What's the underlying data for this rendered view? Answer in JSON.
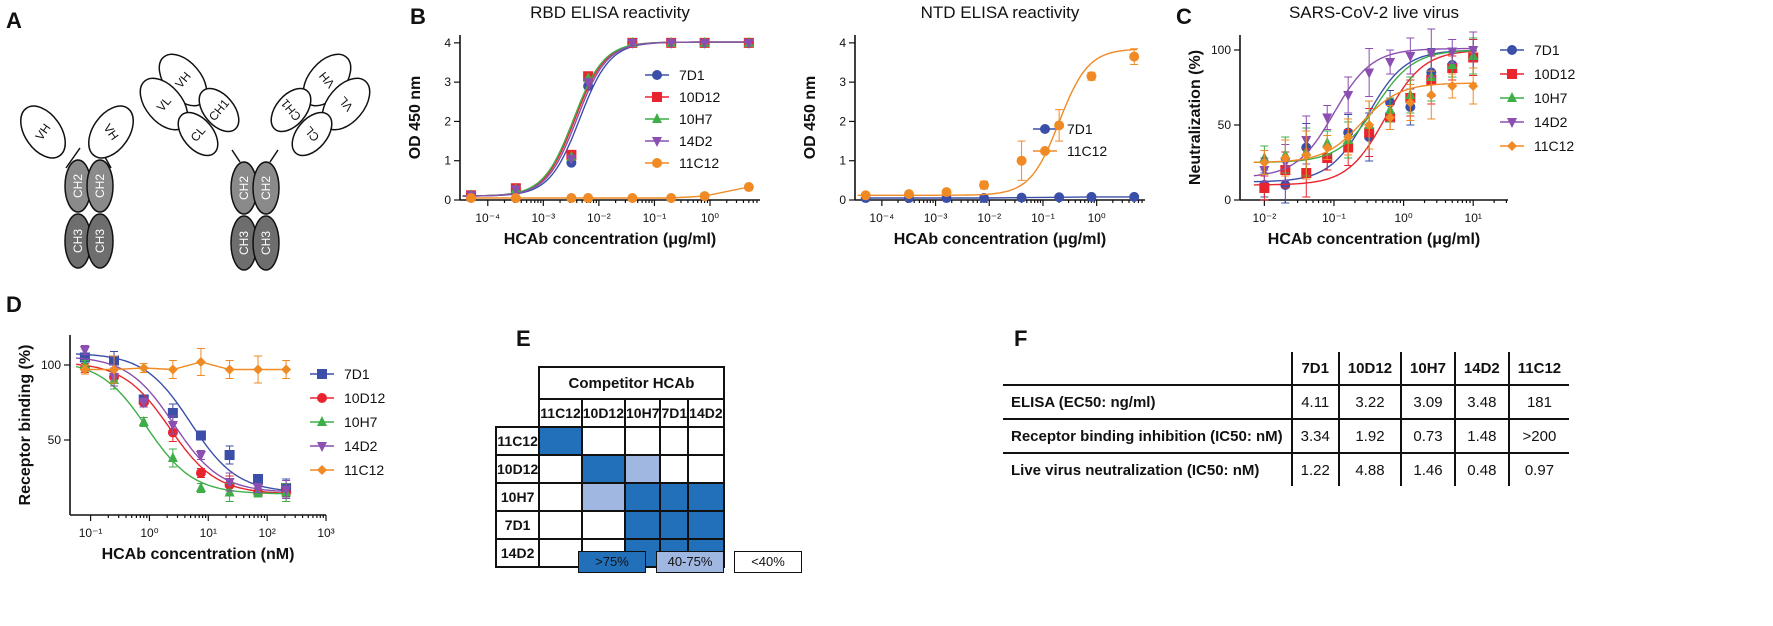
{
  "panel_labels": {
    "A": "A",
    "B": "B",
    "C": "C",
    "D": "D",
    "E": "E",
    "F": "F"
  },
  "diagram_a": {
    "heavy_only": {
      "domains": [
        "VH",
        "VH",
        "CH2",
        "CH2",
        "CH3",
        "CH3"
      ]
    },
    "conventional": {
      "domains": [
        "VH",
        "VL",
        "CH1",
        "CL",
        "CH2",
        "CH2",
        "CH3",
        "CH3",
        "CH1",
        "CL",
        "VH",
        "VL"
      ]
    }
  },
  "chart_data": [
    {
      "type": "line",
      "id": "B-left",
      "title": "RBD ELISA reactivity",
      "xlabel": "HCAb concentration (μg/ml)",
      "ylabel": "OD 450 nm",
      "xscale": "log10",
      "xlim_exp": [
        -4.5,
        0.9
      ],
      "ylim": [
        0,
        4.2
      ],
      "xticks": [
        "10⁻⁴",
        "10⁻³",
        "10⁻²",
        "10⁻¹",
        "10⁰"
      ],
      "xtick_exps": [
        -4,
        -3,
        -2,
        -1,
        0
      ],
      "yticks": [
        "0",
        "1",
        "2",
        "3",
        "4"
      ],
      "ytick_vals": [
        0,
        1,
        2,
        3,
        4
      ],
      "legend_loc": "center-right",
      "series": [
        {
          "name": "7D1",
          "color": "#3b4fa8",
          "marker": "circle",
          "x": [
            5e-05,
            0.00032,
            0.0032,
            0.0064,
            0.04,
            0.2,
            0.8,
            5
          ],
          "y": [
            0.12,
            0.25,
            0.95,
            2.9,
            4.0,
            4.0,
            4.0,
            4.0
          ],
          "ec50": 0.0045,
          "top": 4.02,
          "bottom": 0.1
        },
        {
          "name": "10D12",
          "color": "#e8252e",
          "marker": "square",
          "x": [
            5e-05,
            0.00032,
            0.0032,
            0.0064,
            0.04,
            0.2,
            0.8,
            5
          ],
          "y": [
            0.12,
            0.3,
            1.15,
            3.15,
            4.0,
            4.0,
            4.0,
            4.0
          ],
          "ec50": 0.0037,
          "top": 4.02,
          "bottom": 0.1
        },
        {
          "name": "10H7",
          "color": "#3fae49",
          "marker": "triangle-up",
          "x": [
            5e-05,
            0.00032,
            0.0032,
            0.0064,
            0.04,
            0.2,
            0.8,
            5
          ],
          "y": [
            0.12,
            0.28,
            1.1,
            3.1,
            4.0,
            4.0,
            4.0,
            4.0
          ],
          "ec50": 0.0035,
          "top": 4.02,
          "bottom": 0.1
        },
        {
          "name": "14D2",
          "color": "#8a4fb0",
          "marker": "triangle-down",
          "x": [
            5e-05,
            0.00032,
            0.0032,
            0.0064,
            0.04,
            0.2,
            0.8,
            5
          ],
          "y": [
            0.12,
            0.27,
            1.05,
            3.0,
            4.0,
            4.0,
            4.0,
            4.0
          ],
          "ec50": 0.004,
          "top": 4.02,
          "bottom": 0.1
        },
        {
          "name": "11C12",
          "color": "#f08a24",
          "marker": "circle",
          "x": [
            5e-05,
            0.00032,
            0.0032,
            0.0064,
            0.04,
            0.2,
            0.8,
            5
          ],
          "y": [
            0.05,
            0.05,
            0.05,
            0.05,
            0.05,
            0.05,
            0.1,
            0.33
          ],
          "ec50": null,
          "top": null,
          "bottom": null
        }
      ]
    },
    {
      "type": "line",
      "id": "B-right",
      "title": "NTD ELISA reactivity",
      "xlabel": "HCAb concentration (μg/ml)",
      "ylabel": "OD 450 nm",
      "xscale": "log10",
      "xlim_exp": [
        -4.5,
        0.9
      ],
      "ylim": [
        0,
        4.2
      ],
      "xticks": [
        "10⁻⁴",
        "10⁻³",
        "10⁻²",
        "10⁻¹",
        "10⁰"
      ],
      "xtick_exps": [
        -4,
        -3,
        -2,
        -1,
        0
      ],
      "yticks": [
        "0",
        "1",
        "2",
        "3",
        "4"
      ],
      "ytick_vals": [
        0,
        1,
        2,
        3,
        4
      ],
      "legend_loc": "center-right",
      "series": [
        {
          "name": "7D1",
          "color": "#3b4fa8",
          "marker": "circle",
          "x": [
            5e-05,
            0.00032,
            0.0016,
            0.008,
            0.04,
            0.2,
            0.8,
            5
          ],
          "y": [
            0.05,
            0.05,
            0.05,
            0.05,
            0.06,
            0.07,
            0.08,
            0.08
          ],
          "ec50": null
        },
        {
          "name": "11C12",
          "color": "#f08a24",
          "marker": "circle",
          "x": [
            5e-05,
            0.00032,
            0.0016,
            0.008,
            0.04,
            0.2,
            0.8,
            5
          ],
          "y": [
            0.12,
            0.15,
            0.2,
            0.38,
            1.0,
            1.9,
            3.15,
            3.65
          ],
          "err": [
            0.02,
            0.02,
            0.03,
            0.1,
            0.5,
            0.4,
            0.1,
            0.2
          ],
          "ec50": 0.2,
          "top": 3.85,
          "bottom": 0.12
        }
      ]
    },
    {
      "type": "line",
      "id": "C",
      "title": "SARS-CoV-2 live virus",
      "xlabel": "HCAb concentration (μg/ml)",
      "ylabel": "Neutralization (%)",
      "xscale": "log10",
      "xlim_exp": [
        -2.35,
        1.5
      ],
      "ylim": [
        0,
        110
      ],
      "xticks": [
        "10⁻²",
        "10⁻¹",
        "10⁰",
        "10¹"
      ],
      "xtick_exps": [
        -2,
        -1,
        0,
        1
      ],
      "yticks": [
        "0",
        "50",
        "100"
      ],
      "ytick_vals": [
        0,
        50,
        100
      ],
      "legend_loc": "top-right",
      "series": [
        {
          "name": "7D1",
          "color": "#3b4fa8",
          "marker": "circle",
          "x": [
            0.01,
            0.02,
            0.04,
            0.08,
            0.16,
            0.32,
            0.64,
            1.25,
            2.5,
            5,
            10
          ],
          "y": [
            10,
            10,
            35,
            28,
            45,
            42,
            65,
            62,
            85,
            90,
            95
          ],
          "ec50": 0.3,
          "top": 100,
          "bottom": 12
        },
        {
          "name": "10D12",
          "color": "#e8252e",
          "marker": "square",
          "x": [
            0.01,
            0.02,
            0.04,
            0.08,
            0.16,
            0.32,
            0.64,
            1.25,
            2.5,
            5,
            10
          ],
          "y": [
            8,
            20,
            18,
            28,
            35,
            45,
            55,
            68,
            80,
            88,
            95
          ],
          "ec50": 0.55,
          "top": 100,
          "bottom": 10
        },
        {
          "name": "10H7",
          "color": "#3fae49",
          "marker": "triangle-up",
          "x": [
            0.01,
            0.02,
            0.04,
            0.08,
            0.16,
            0.32,
            0.64,
            1.25,
            2.5,
            5,
            10
          ],
          "y": [
            28,
            30,
            32,
            38,
            40,
            50,
            60,
            70,
            82,
            90,
            96
          ],
          "ec50": 0.4,
          "top": 100,
          "bottom": 25
        },
        {
          "name": "14D2",
          "color": "#8a4fb0",
          "marker": "triangle-down",
          "x": [
            0.01,
            0.02,
            0.04,
            0.08,
            0.16,
            0.32,
            0.64,
            1.25,
            2.5,
            5,
            10
          ],
          "y": [
            20,
            25,
            40,
            55,
            70,
            85,
            92,
            96,
            98,
            99,
            100
          ],
          "ec50": 0.1,
          "top": 101,
          "bottom": 15
        },
        {
          "name": "11C12",
          "color": "#f08a24",
          "marker": "diamond",
          "x": [
            0.01,
            0.02,
            0.04,
            0.08,
            0.16,
            0.32,
            0.64,
            1.25,
            2.5,
            5,
            10
          ],
          "y": [
            25,
            28,
            30,
            35,
            42,
            50,
            55,
            65,
            70,
            76,
            76
          ],
          "ec50": 0.25,
          "top": 78,
          "bottom": 25
        }
      ]
    },
    {
      "type": "line",
      "id": "D",
      "xlabel": "HCAb concentration (nM)",
      "ylabel": "Receptor binding (%)",
      "xscale": "log10",
      "xlim_exp": [
        -1.35,
        3
      ],
      "ylim": [
        0,
        120
      ],
      "xticks": [
        "10⁻¹",
        "10⁰",
        "10¹",
        "10²",
        "10³"
      ],
      "xtick_exps": [
        -1,
        0,
        1,
        2,
        3
      ],
      "yticks": [
        "50",
        "100"
      ],
      "ytick_vals": [
        50,
        100
      ],
      "legend_loc": "center-right",
      "series": [
        {
          "name": "7D1",
          "color": "#3b4fa8",
          "marker": "square",
          "x": [
            0.08,
            0.25,
            0.8,
            2.5,
            7.5,
            23,
            70,
            210
          ],
          "y": [
            105,
            103,
            77,
            68,
            53,
            40,
            24,
            18
          ],
          "ec50": 5,
          "top": 108,
          "bottom": 15
        },
        {
          "name": "10D12",
          "color": "#e8252e",
          "marker": "circle",
          "x": [
            0.08,
            0.25,
            0.8,
            2.5,
            7.5,
            23,
            70,
            210
          ],
          "y": [
            98,
            92,
            75,
            55,
            28,
            20,
            15,
            15
          ],
          "ec50": 2.2,
          "top": 102,
          "bottom": 14
        },
        {
          "name": "10H7",
          "color": "#3fae49",
          "marker": "triangle-up",
          "x": [
            0.08,
            0.25,
            0.8,
            2.5,
            7.5,
            23,
            70,
            210
          ],
          "y": [
            100,
            90,
            62,
            38,
            18,
            15,
            15,
            15
          ],
          "ec50": 0.9,
          "top": 103,
          "bottom": 14
        },
        {
          "name": "14D2",
          "color": "#8a4fb0",
          "marker": "triangle-down",
          "x": [
            0.08,
            0.25,
            0.8,
            2.5,
            7.5,
            23,
            70,
            210
          ],
          "y": [
            110,
            92,
            75,
            60,
            40,
            22,
            18,
            17
          ],
          "ec50": 2.6,
          "top": 106,
          "bottom": 15
        },
        {
          "name": "11C12",
          "color": "#f08a24",
          "marker": "diamond",
          "x": [
            0.08,
            0.25,
            0.8,
            2.5,
            7.5,
            23,
            70,
            210
          ],
          "y": [
            97,
            97,
            98,
            97,
            102,
            97,
            97,
            97
          ],
          "ec50": null
        }
      ]
    },
    {
      "type": "table",
      "id": "E",
      "title": "Competitor HCAb",
      "columns": [
        "11C12",
        "10D12",
        "10H7",
        "7D1",
        "14D2"
      ],
      "rows": [
        {
          "label": "11C12",
          "levels": [
            "high",
            "low",
            "low",
            "low",
            "low"
          ]
        },
        {
          "label": "10D12",
          "levels": [
            "low",
            "high",
            "mid",
            "low",
            "low"
          ]
        },
        {
          "label": "10H7",
          "levels": [
            "low",
            "mid",
            "high",
            "high",
            "high"
          ]
        },
        {
          "label": "7D1",
          "levels": [
            "low",
            "low",
            "high",
            "high",
            "high"
          ]
        },
        {
          "label": "14D2",
          "levels": [
            "low",
            "low",
            "high",
            "high",
            "high"
          ]
        }
      ],
      "legend": [
        {
          "level": "high",
          "label": ">75%"
        },
        {
          "level": "mid",
          "label": "40-75%"
        },
        {
          "level": "low",
          "label": "<40%"
        }
      ]
    },
    {
      "type": "table",
      "id": "F",
      "columns": [
        "7D1",
        "10D12",
        "10H7",
        "14D2",
        "11C12"
      ],
      "rows": [
        {
          "label": "ELISA (EC50: ng/ml)",
          "values": [
            "4.11",
            "3.22",
            "3.09",
            "3.48",
            "181"
          ]
        },
        {
          "label": "Receptor binding inhibition (IC50: nM)",
          "values": [
            "3.34",
            "1.92",
            "0.73",
            "1.48",
            ">200"
          ]
        },
        {
          "label": "Live virus neutralization (IC50: nM)",
          "values": [
            "1.22",
            "4.88",
            "1.46",
            "0.48",
            "0.97"
          ]
        }
      ]
    }
  ]
}
